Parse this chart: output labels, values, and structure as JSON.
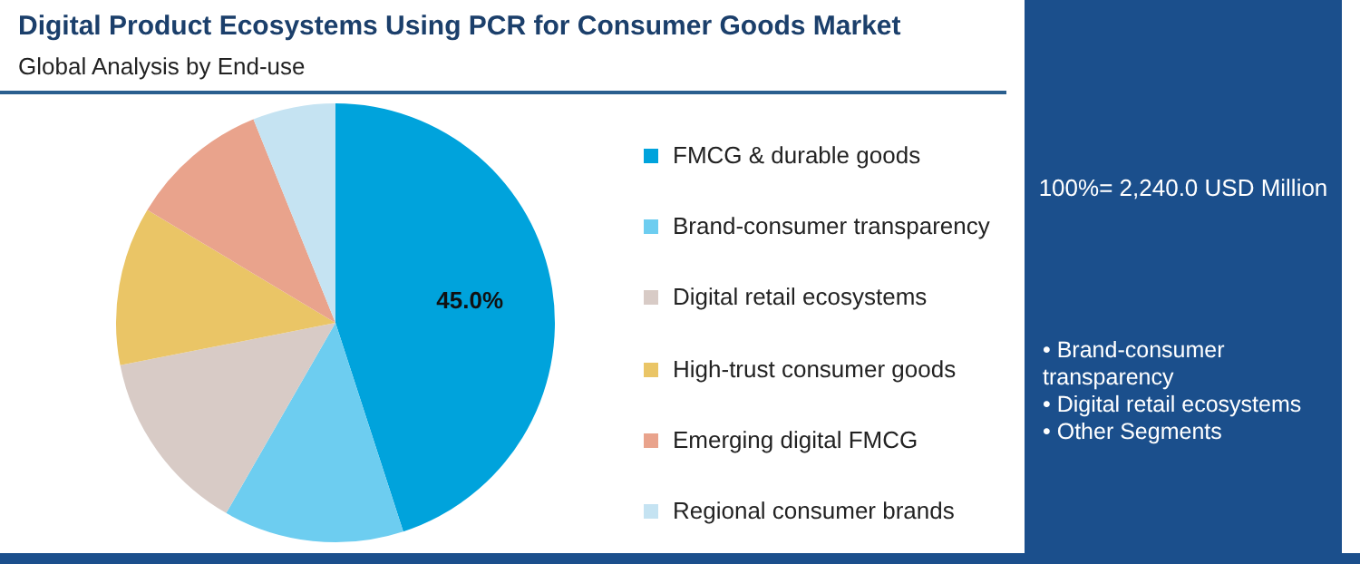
{
  "chart_data": {
    "type": "pie",
    "title": "Digital Product Ecosystems Using PCR for Consumer Goods Market",
    "subtitle": "Global Analysis by End-use",
    "categories": [
      "FMCG & durable goods",
      "Brand-consumer transparency",
      "Digital retail ecosystems",
      "High-trust consumer goods",
      "Emerging digital FMCG",
      "Regional consumer brands"
    ],
    "values": [
      45.0,
      13.3,
      13.6,
      11.7,
      10.3,
      6.1
    ],
    "colors": [
      "#00a3dc",
      "#6dcdf0",
      "#d8cbc6",
      "#eac566",
      "#e9a38c",
      "#c5e3f2"
    ],
    "value_labels": [
      "45.0%",
      null,
      null,
      null,
      null,
      null
    ],
    "legend": "right",
    "annotations": [
      "100%= 2,240.0 USD Million",
      "• Brand-consumer transparency",
      "• Digital retail ecosystems",
      "• Other Segments"
    ]
  }
}
